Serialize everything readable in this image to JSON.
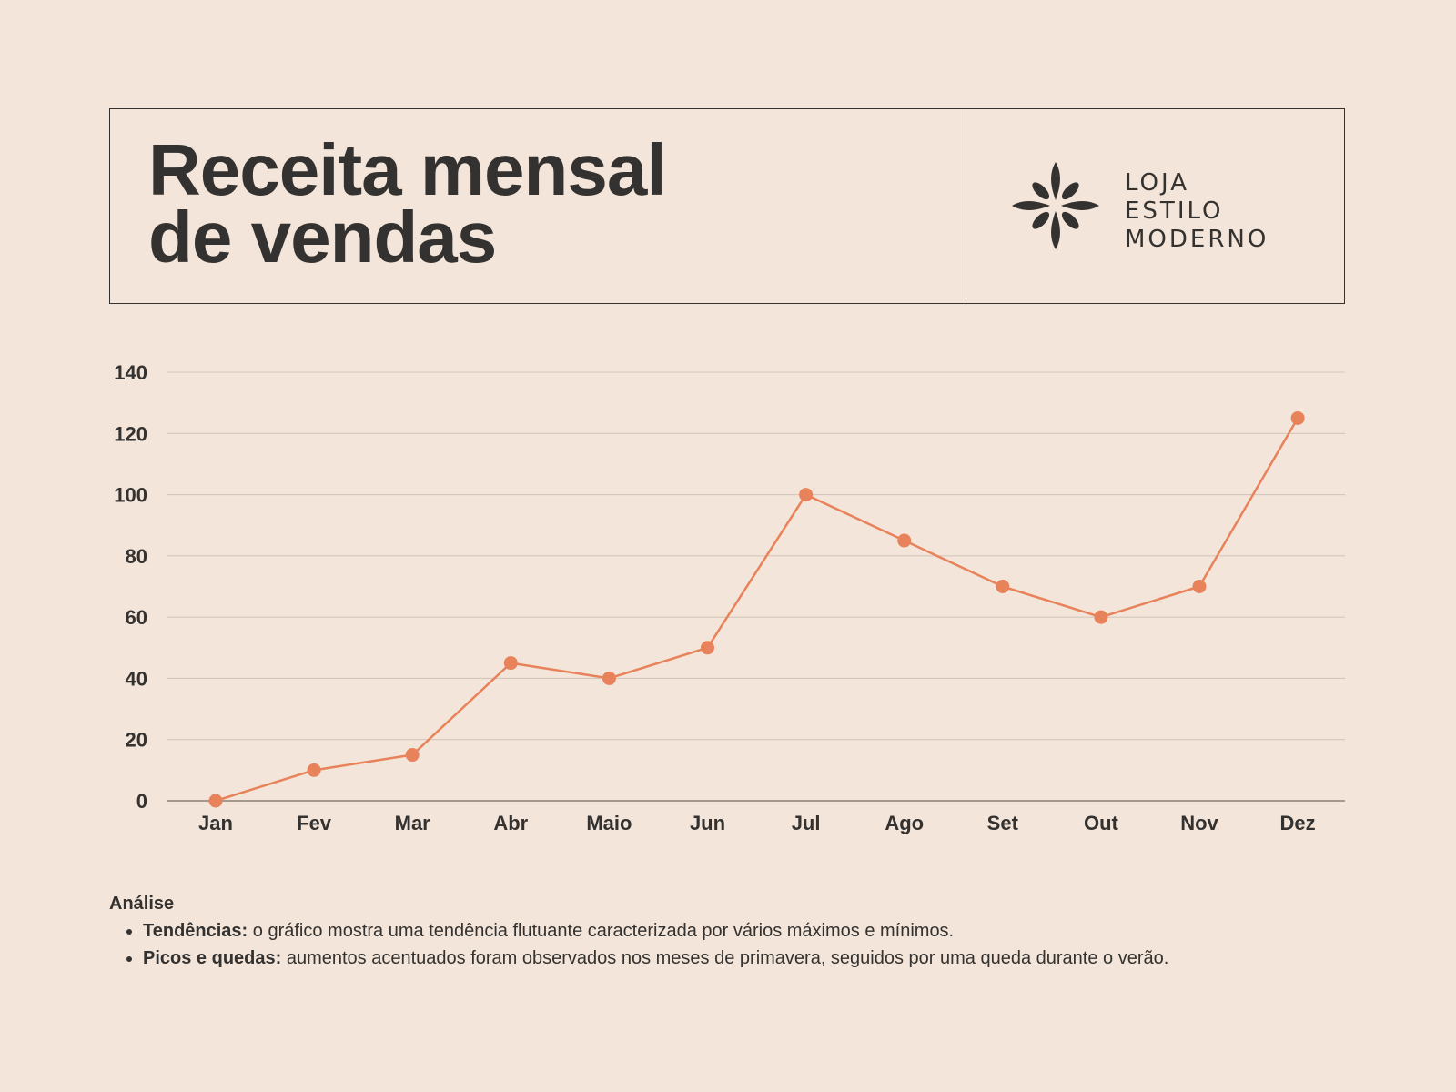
{
  "header": {
    "title_line1": "Receita mensal",
    "title_line2": "de vendas"
  },
  "brand": {
    "line1": "LOJA",
    "line2": "ESTILO",
    "line3": "MODERNO",
    "icon": "flower-logo-icon"
  },
  "chart_data": {
    "type": "line",
    "title": "",
    "xlabel": "",
    "ylabel": "",
    "categories": [
      "Jan",
      "Fev",
      "Mar",
      "Abr",
      "Maio",
      "Jun",
      "Jul",
      "Ago",
      "Set",
      "Out",
      "Nov",
      "Dez"
    ],
    "series": [
      {
        "values": [
          0,
          10,
          15,
          45,
          40,
          50,
          100,
          85,
          70,
          60,
          70,
          125
        ]
      }
    ],
    "ylim": [
      0,
      140
    ],
    "yticks": [
      0,
      20,
      40,
      60,
      80,
      100,
      120,
      140
    ],
    "grid": true,
    "legend": "none",
    "line_color": "#e8825a",
    "grid_color": "#d3c6bb",
    "axis_color": "#8a817b"
  },
  "analysis": {
    "title": "Análise",
    "items": [
      {
        "label": "Tendências:",
        "text": " o gráfico mostra uma tendência flutuante caracterizada por vários máximos e mínimos."
      },
      {
        "label": "Picos e quedas:",
        "text": " aumentos acentuados foram observados nos meses de primavera, seguidos por uma queda durante o verão."
      }
    ]
  },
  "colors": {
    "background": "#f3e5d9",
    "text": "#343230",
    "accent": "#e8825a"
  }
}
